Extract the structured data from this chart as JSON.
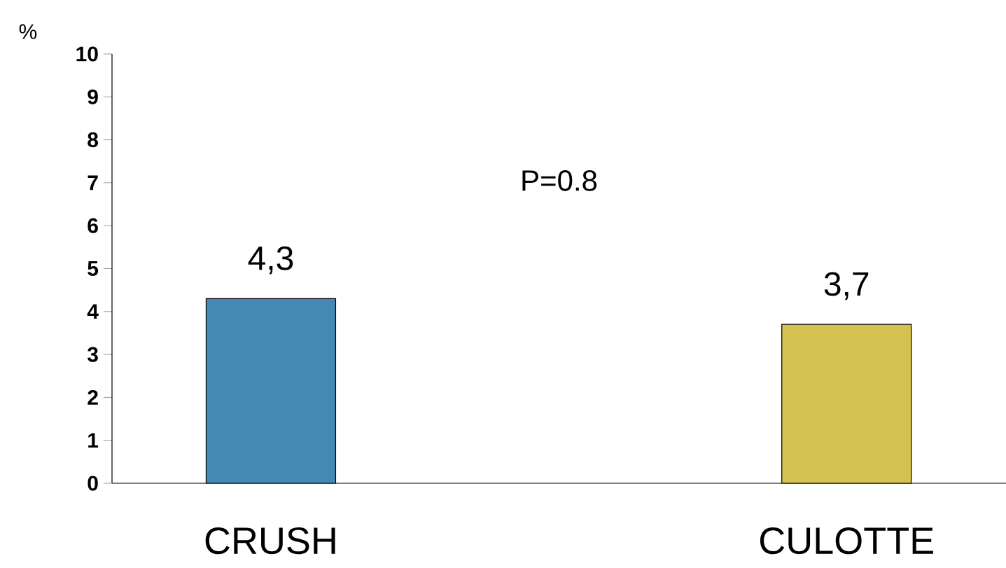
{
  "chart_data": {
    "type": "bar",
    "ylabel": "%",
    "categories": [
      "CRUSH",
      "CULOTTE"
    ],
    "values": [
      4.3,
      3.7
    ],
    "colors": [
      "#4489b4",
      "#d4c250"
    ],
    "value_labels": [
      "4,3",
      "3,7"
    ],
    "ylim": [
      0,
      10
    ],
    "yticks": [
      0,
      1,
      2,
      3,
      4,
      5,
      6,
      7,
      8,
      9,
      10
    ],
    "annotations": [
      "P=0.8"
    ]
  }
}
